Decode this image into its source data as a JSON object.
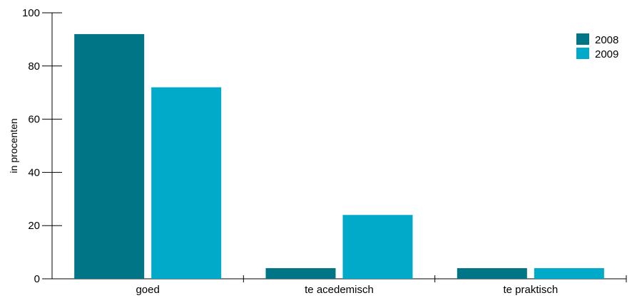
{
  "chart_data": {
    "type": "bar",
    "categories": [
      "goed",
      "te acedemisch",
      "te praktisch"
    ],
    "series": [
      {
        "name": "2008",
        "values": [
          92,
          4,
          4
        ],
        "color": "#007585"
      },
      {
        "name": "2009",
        "values": [
          72,
          24,
          4
        ],
        "color": "#00aac8"
      }
    ],
    "xlabel": "",
    "ylabel": "in procenten",
    "ylim": [
      0,
      100
    ],
    "yticks": [
      0,
      20,
      40,
      60,
      80,
      100
    ],
    "grid": false,
    "legend_position": "top-right"
  }
}
